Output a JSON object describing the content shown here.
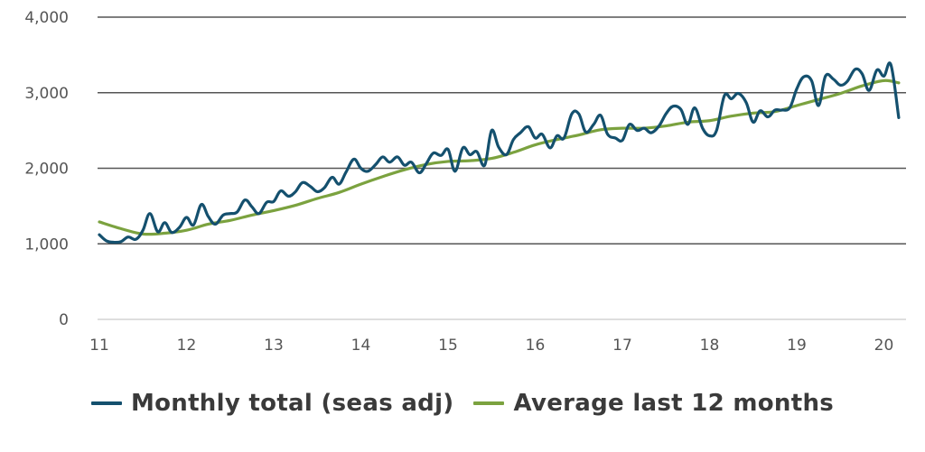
{
  "chart_data": {
    "type": "line",
    "ylim": [
      0,
      4000
    ],
    "xlim": [
      11,
      20.2
    ],
    "y_ticks": [
      0,
      1000,
      2000,
      3000,
      4000
    ],
    "y_tick_labels": [
      "0",
      "1,000",
      "2,000",
      "3,000",
      "4,000"
    ],
    "x_ticks": [
      11,
      12,
      13,
      14,
      15,
      16,
      17,
      18,
      19,
      20
    ],
    "x_tick_labels": [
      "11",
      "12",
      "13",
      "14",
      "15",
      "16",
      "17",
      "18",
      "19",
      "20"
    ],
    "grid": "horizontal",
    "legend_position": "bottom",
    "series": [
      {
        "name": "Monthly total (seas adj)",
        "color": "#14506e",
        "points": [
          [
            11.0,
            1120
          ],
          [
            11.08,
            1040
          ],
          [
            11.17,
            1020
          ],
          [
            11.25,
            1030
          ],
          [
            11.33,
            1090
          ],
          [
            11.42,
            1060
          ],
          [
            11.5,
            1180
          ],
          [
            11.58,
            1400
          ],
          [
            11.67,
            1160
          ],
          [
            11.75,
            1280
          ],
          [
            11.83,
            1150
          ],
          [
            11.92,
            1220
          ],
          [
            12.0,
            1350
          ],
          [
            12.08,
            1250
          ],
          [
            12.17,
            1520
          ],
          [
            12.25,
            1360
          ],
          [
            12.33,
            1260
          ],
          [
            12.42,
            1380
          ],
          [
            12.5,
            1400
          ],
          [
            12.58,
            1420
          ],
          [
            12.67,
            1580
          ],
          [
            12.75,
            1490
          ],
          [
            12.83,
            1400
          ],
          [
            12.92,
            1550
          ],
          [
            13.0,
            1560
          ],
          [
            13.08,
            1700
          ],
          [
            13.17,
            1630
          ],
          [
            13.25,
            1690
          ],
          [
            13.33,
            1810
          ],
          [
            13.42,
            1760
          ],
          [
            13.5,
            1690
          ],
          [
            13.58,
            1740
          ],
          [
            13.67,
            1880
          ],
          [
            13.75,
            1790
          ],
          [
            13.83,
            1950
          ],
          [
            13.92,
            2120
          ],
          [
            14.0,
            2000
          ],
          [
            14.08,
            1960
          ],
          [
            14.17,
            2050
          ],
          [
            14.25,
            2150
          ],
          [
            14.33,
            2080
          ],
          [
            14.42,
            2150
          ],
          [
            14.5,
            2040
          ],
          [
            14.58,
            2080
          ],
          [
            14.67,
            1940
          ],
          [
            14.75,
            2060
          ],
          [
            14.83,
            2200
          ],
          [
            14.92,
            2170
          ],
          [
            15.0,
            2250
          ],
          [
            15.08,
            1960
          ],
          [
            15.17,
            2270
          ],
          [
            15.25,
            2180
          ],
          [
            15.33,
            2220
          ],
          [
            15.42,
            2040
          ],
          [
            15.5,
            2500
          ],
          [
            15.58,
            2280
          ],
          [
            15.67,
            2180
          ],
          [
            15.75,
            2380
          ],
          [
            15.83,
            2470
          ],
          [
            15.92,
            2550
          ],
          [
            16.0,
            2400
          ],
          [
            16.08,
            2450
          ],
          [
            16.17,
            2270
          ],
          [
            16.25,
            2430
          ],
          [
            16.33,
            2400
          ],
          [
            16.42,
            2720
          ],
          [
            16.5,
            2720
          ],
          [
            16.58,
            2480
          ],
          [
            16.67,
            2580
          ],
          [
            16.75,
            2700
          ],
          [
            16.83,
            2450
          ],
          [
            16.92,
            2400
          ],
          [
            17.0,
            2370
          ],
          [
            17.08,
            2580
          ],
          [
            17.17,
            2500
          ],
          [
            17.25,
            2530
          ],
          [
            17.33,
            2470
          ],
          [
            17.42,
            2560
          ],
          [
            17.5,
            2720
          ],
          [
            17.58,
            2820
          ],
          [
            17.67,
            2780
          ],
          [
            17.75,
            2580
          ],
          [
            17.83,
            2800
          ],
          [
            17.92,
            2530
          ],
          [
            18.0,
            2430
          ],
          [
            18.08,
            2500
          ],
          [
            18.17,
            2960
          ],
          [
            18.25,
            2920
          ],
          [
            18.33,
            2990
          ],
          [
            18.42,
            2870
          ],
          [
            18.5,
            2610
          ],
          [
            18.58,
            2760
          ],
          [
            18.67,
            2680
          ],
          [
            18.75,
            2770
          ],
          [
            18.83,
            2770
          ],
          [
            18.92,
            2800
          ],
          [
            19.0,
            3050
          ],
          [
            19.08,
            3210
          ],
          [
            19.17,
            3160
          ],
          [
            19.25,
            2830
          ],
          [
            19.33,
            3220
          ],
          [
            19.42,
            3180
          ],
          [
            19.5,
            3100
          ],
          [
            19.58,
            3150
          ],
          [
            19.67,
            3310
          ],
          [
            19.75,
            3250
          ],
          [
            19.83,
            3030
          ],
          [
            19.92,
            3300
          ],
          [
            20.0,
            3220
          ],
          [
            20.08,
            3370
          ],
          [
            20.17,
            2670
          ]
        ]
      },
      {
        "name": "Average last 12 months",
        "color": "#7ba23f",
        "points": [
          [
            11.0,
            1290
          ],
          [
            11.25,
            1200
          ],
          [
            11.5,
            1130
          ],
          [
            11.75,
            1140
          ],
          [
            12.0,
            1180
          ],
          [
            12.25,
            1260
          ],
          [
            12.5,
            1310
          ],
          [
            12.75,
            1380
          ],
          [
            13.0,
            1440
          ],
          [
            13.25,
            1510
          ],
          [
            13.5,
            1600
          ],
          [
            13.75,
            1680
          ],
          [
            14.0,
            1790
          ],
          [
            14.25,
            1890
          ],
          [
            14.5,
            1980
          ],
          [
            14.75,
            2050
          ],
          [
            15.0,
            2090
          ],
          [
            15.25,
            2100
          ],
          [
            15.5,
            2130
          ],
          [
            15.75,
            2210
          ],
          [
            16.0,
            2310
          ],
          [
            16.25,
            2380
          ],
          [
            16.5,
            2440
          ],
          [
            16.75,
            2510
          ],
          [
            17.0,
            2530
          ],
          [
            17.25,
            2530
          ],
          [
            17.5,
            2560
          ],
          [
            17.75,
            2610
          ],
          [
            18.0,
            2630
          ],
          [
            18.25,
            2690
          ],
          [
            18.5,
            2730
          ],
          [
            18.75,
            2750
          ],
          [
            19.0,
            2830
          ],
          [
            19.25,
            2910
          ],
          [
            19.5,
            2990
          ],
          [
            19.75,
            3090
          ],
          [
            20.0,
            3160
          ],
          [
            20.17,
            3130
          ]
        ]
      }
    ]
  }
}
